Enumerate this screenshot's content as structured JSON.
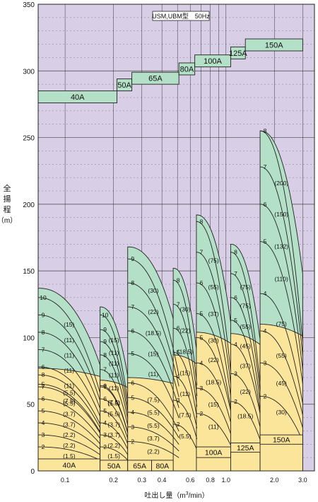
{
  "chart_data": {
    "type": "area",
    "title": "USM,UBM型　50Hz",
    "ylabel_chars": [
      "全",
      "揚",
      "程"
    ],
    "ylabel_unit": "（m）",
    "xlabel": "吐出し量（m",
    "xlabel_sup": "3",
    "xlabel_tail": "/min）",
    "x_scale": "log",
    "xlim": [
      0.068,
      3.55
    ],
    "ylim": [
      0,
      350
    ],
    "grid": true,
    "x_ticks": [
      {
        "v": 0.1,
        "label": "0.1"
      },
      {
        "v": 0.2,
        "label": "0.2"
      },
      {
        "v": 0.3,
        "label": "0.3"
      },
      {
        "v": 0.4,
        "label": "0.4"
      },
      {
        "v": 0.6,
        "label": "0.6"
      },
      {
        "v": 0.8,
        "label": "0.8"
      },
      {
        "v": 1.0,
        "label": "1.0"
      },
      {
        "v": 2.0,
        "label": "2.0"
      },
      {
        "v": 3.0,
        "label": "3.0"
      }
    ],
    "x_gridlines": [
      0.1,
      0.2,
      0.3,
      0.4,
      0.5,
      0.6,
      0.7,
      0.8,
      0.9,
      1.0,
      2.0,
      3.0
    ],
    "y_ticks": [
      0,
      50,
      100,
      150,
      200,
      250,
      300,
      350
    ],
    "y_minor_step": 10,
    "colors": {
      "background": "#d8cfe6",
      "grid": "#222222",
      "high_head_fill": "#b3e0c6",
      "low_head_fill": "#fbe59a",
      "outline": "#222222"
    },
    "size_labels": [
      {
        "name": "40A",
        "x": [
          0.068,
          0.21
        ],
        "y": [
          276,
          285
        ]
      },
      {
        "name": "50A",
        "x": [
          0.21,
          0.26
        ],
        "y": [
          285,
          294
        ]
      },
      {
        "name": "65A",
        "x": [
          0.26,
          0.51
        ],
        "y": [
          290,
          299
        ]
      },
      {
        "name": "80A",
        "x": [
          0.51,
          0.64
        ],
        "y": [
          297,
          306
        ]
      },
      {
        "name": "100A",
        "x": [
          0.64,
          1.07
        ],
        "y": [
          303,
          312
        ]
      },
      {
        "name": "125A",
        "x": [
          1.07,
          1.32
        ],
        "y": [
          309,
          318
        ]
      },
      {
        "name": "150A",
        "x": [
          1.32,
          3.0
        ],
        "y": [
          315,
          324
        ]
      }
    ],
    "bottom_labels": [
      {
        "name": "40A",
        "x": [
          0.068,
          0.165
        ],
        "y": [
          0,
          9
        ]
      },
      {
        "name": "50A",
        "x": [
          0.165,
          0.245
        ],
        "y": [
          0,
          8
        ]
      },
      {
        "name": "65A",
        "x": [
          0.245,
          0.345
        ],
        "y": [
          0,
          8
        ]
      },
      {
        "name": "80A",
        "x": [
          0.345,
          0.47
        ],
        "y": [
          0,
          8
        ]
      },
      {
        "name": "100A",
        "x": [
          0.655,
          1.07
        ],
        "y": [
          10,
          18
        ]
      },
      {
        "name": "125A",
        "x": [
          1.07,
          1.63
        ],
        "y": [
          14,
          21
        ]
      },
      {
        "name": "150A",
        "x": [
          1.63,
          3.0
        ],
        "y": [
          20,
          27
        ]
      }
    ],
    "series": [
      {
        "name": "40A",
        "xmin": 0.068,
        "xmax": 0.165,
        "green_top": 137,
        "yellow_top": 77,
        "curves": [
          {
            "stage": "10",
            "kw": "(15)",
            "head": 130,
            "k": 0.55
          },
          {
            "stage": "9",
            "kw": "(11)",
            "head": 117,
            "k": 0.55
          },
          {
            "stage": "8",
            "kw": "(11)",
            "head": 104,
            "k": 0.55
          },
          {
            "stage": "7",
            "kw": "(11)",
            "head": 91,
            "k": 0.55
          },
          {
            "stage": "6",
            "kw": "(11)",
            "head": 78,
            "k": 0.55
          },
          {
            "stage": "5",
            "kw": "(7.5)",
            "head": 65,
            "k": 0.55
          },
          {
            "stage": "8",
            "kw": "(5.5)",
            "head": 72,
            "k": 0.55,
            "zone": "low"
          },
          {
            "stage": "7",
            "kw": "(5.5)",
            "head": 63,
            "k": 0.55,
            "zone": "low"
          },
          {
            "stage": "6",
            "kw": "(3.7)",
            "head": 54,
            "k": 0.55,
            "zone": "low"
          },
          {
            "stage": "5",
            "kw": "(3.7)",
            "head": 45,
            "k": 0.55,
            "zone": "low"
          },
          {
            "stage": "4",
            "kw": "(2.2)",
            "head": 36,
            "k": 0.55,
            "zone": "low"
          },
          {
            "stage": "3",
            "kw": "(2.2)",
            "head": 27,
            "k": 0.55,
            "zone": "low"
          },
          {
            "stage": "2",
            "kw": "(1.5)",
            "head": 18,
            "k": 0.55,
            "zone": "low"
          }
        ]
      },
      {
        "name": "50A",
        "xmin": 0.165,
        "xmax": 0.245,
        "green_top": 123,
        "yellow_top": 68,
        "curves": [
          {
            "stage": "10",
            "kw": "(15)",
            "head": 117,
            "k": 0.55
          },
          {
            "stage": "9",
            "kw": "(11)",
            "head": 106,
            "k": 0.55
          },
          {
            "stage": "9",
            "kw": "(11)",
            "head": 97,
            "k": 0.55
          },
          {
            "stage": "8",
            "kw": "(11)",
            "head": 87,
            "k": 0.55
          },
          {
            "stage": "7",
            "kw": "(11)",
            "head": 76,
            "k": 0.55
          },
          {
            "stage": "6",
            "kw": "(7.5)",
            "head": 64,
            "k": 0.55
          },
          {
            "stage": "7",
            "kw": "(5.5)",
            "head": 63,
            "k": 0.55,
            "zone": "low"
          },
          {
            "stage": "6",
            "kw": "(5.5)",
            "head": 54,
            "k": 0.55,
            "zone": "low"
          },
          {
            "stage": "5",
            "kw": "(3.7)",
            "head": 45,
            "k": 0.55,
            "zone": "low"
          },
          {
            "stage": "4",
            "kw": "(3.7)",
            "head": 36,
            "k": 0.55,
            "zone": "low"
          },
          {
            "stage": "3",
            "kw": "(2.2)",
            "head": 27,
            "k": 0.55,
            "zone": "low"
          },
          {
            "stage": "2",
            "kw": "(1.5)",
            "head": 18,
            "k": 0.55,
            "zone": "low"
          }
        ]
      },
      {
        "name": "65A",
        "xmin": 0.245,
        "xmax": 0.51,
        "green_top": 168,
        "yellow_top": 70,
        "curves": [
          {
            "stage": "9",
            "kw": "(30)",
            "head": 159,
            "k": 0.55
          },
          {
            "stage": "8",
            "kw": "(22)",
            "head": 141,
            "k": 0.55
          },
          {
            "stage": "7",
            "kw": "(18.5)",
            "head": 123,
            "k": 0.55
          },
          {
            "stage": "6",
            "kw": "(15)",
            "head": 105,
            "k": 0.55
          },
          {
            "stage": "5",
            "kw": "(11)",
            "head": 88,
            "k": 0.55
          },
          {
            "stage": "6",
            "kw": "(7.5)",
            "head": 66,
            "k": 0.55,
            "zone": "low"
          },
          {
            "stage": "5",
            "kw": "(5.5)",
            "head": 55,
            "k": 0.55,
            "zone": "low"
          },
          {
            "stage": "4",
            "kw": "(5.5)",
            "head": 44,
            "k": 0.55,
            "zone": "low"
          },
          {
            "stage": "3",
            "kw": "(3.7)",
            "head": 33,
            "k": 0.55,
            "zone": "low"
          },
          {
            "stage": "2",
            "kw": "(2.2)",
            "head": 22,
            "k": 0.55,
            "zone": "low"
          }
        ]
      },
      {
        "name": "80A",
        "xmin": 0.47,
        "xmax": 0.66,
        "green_top": 152,
        "yellow_top": 87,
        "curves": [
          {
            "stage": "8",
            "kw": "(30)",
            "head": 143,
            "k": 0.55
          },
          {
            "stage": "7",
            "kw": "(22)",
            "head": 125,
            "k": 0.55
          },
          {
            "stage": "6",
            "kw": "(18.5)",
            "head": 107,
            "k": 0.55
          },
          {
            "stage": "5",
            "kw": "(15)",
            "head": 89,
            "k": 0.55
          },
          {
            "stage": "4",
            "kw": "(11)",
            "head": 71,
            "k": 0.55,
            "zone": "low"
          },
          {
            "stage": "3",
            "kw": "(7.5)",
            "head": 53,
            "k": 0.55,
            "zone": "low"
          },
          {
            "stage": "2",
            "kw": "(5.5)",
            "head": 35,
            "k": 0.55,
            "zone": "low"
          }
        ]
      },
      {
        "name": "100A",
        "xmin": 0.655,
        "xmax": 1.07,
        "green_top": 192,
        "yellow_top": 104,
        "curves": [
          {
            "stage": "8",
            "kw": "(75)",
            "head": 187,
            "k": 0.6
          },
          {
            "stage": "7",
            "kw": "(55)",
            "head": 164,
            "k": 0.6
          },
          {
            "stage": "6",
            "kw": "(37)",
            "head": 141,
            "k": 0.6
          },
          {
            "stage": "5",
            "kw": "(30)",
            "head": 118,
            "k": 0.6
          },
          {
            "stage": "5",
            "kw": "(22)",
            "head": 100,
            "k": 0.55,
            "zone": "low"
          },
          {
            "stage": "4",
            "kw": "(18.5)",
            "head": 81,
            "k": 0.55,
            "zone": "low"
          },
          {
            "stage": "3",
            "kw": "(15)",
            "head": 62,
            "k": 0.55,
            "zone": "low"
          },
          {
            "stage": "2",
            "kw": "(11)",
            "head": 43,
            "k": 0.55,
            "zone": "low"
          }
        ]
      },
      {
        "name": "125A",
        "xmin": 1.07,
        "xmax": 1.63,
        "green_top": 170,
        "yellow_top": 103,
        "curves": [
          {
            "stage": "8",
            "kw": "(75)",
            "head": 164,
            "k": 0.6
          },
          {
            "stage": "7",
            "kw": "(75)",
            "head": 148,
            "k": 0.6
          },
          {
            "stage": "6",
            "kw": "(55)",
            "head": 130,
            "k": 0.6
          },
          {
            "stage": "5",
            "kw": "(45)",
            "head": 113,
            "k": 0.6
          },
          {
            "stage": "4",
            "kw": "(37)",
            "head": 95,
            "k": 0.55,
            "zone": "low"
          },
          {
            "stage": "3",
            "kw": "(22)",
            "head": 73,
            "k": 0.55,
            "zone": "low"
          },
          {
            "stage": "2",
            "kw": "(18.5)",
            "head": 52,
            "k": 0.55,
            "zone": "low"
          }
        ]
      },
      {
        "name": "150A",
        "xmin": 1.63,
        "xmax": 3.0,
        "green_top": 255,
        "yellow_top": 110,
        "curves": [
          {
            "stage": "8",
            "kw": "(200)",
            "head": 255,
            "k": 0.62
          },
          {
            "stage": "7",
            "kw": "(150)",
            "head": 228,
            "k": 0.62
          },
          {
            "stage": "6",
            "kw": "(132)",
            "head": 200,
            "k": 0.62
          },
          {
            "stage": "5",
            "kw": "(110)",
            "head": 172,
            "k": 0.62
          },
          {
            "stage": "4",
            "kw": "(75)",
            "head": 133,
            "k": 0.62
          },
          {
            "stage": "4",
            "kw": "(55)",
            "head": 105,
            "k": 0.6,
            "zone": "low"
          },
          {
            "stage": "3",
            "kw": "(45)",
            "head": 81,
            "k": 0.6,
            "zone": "low"
          },
          {
            "stage": "2",
            "kw": "(30)",
            "head": 56,
            "k": 0.6,
            "zone": "low"
          }
        ]
      }
    ]
  }
}
